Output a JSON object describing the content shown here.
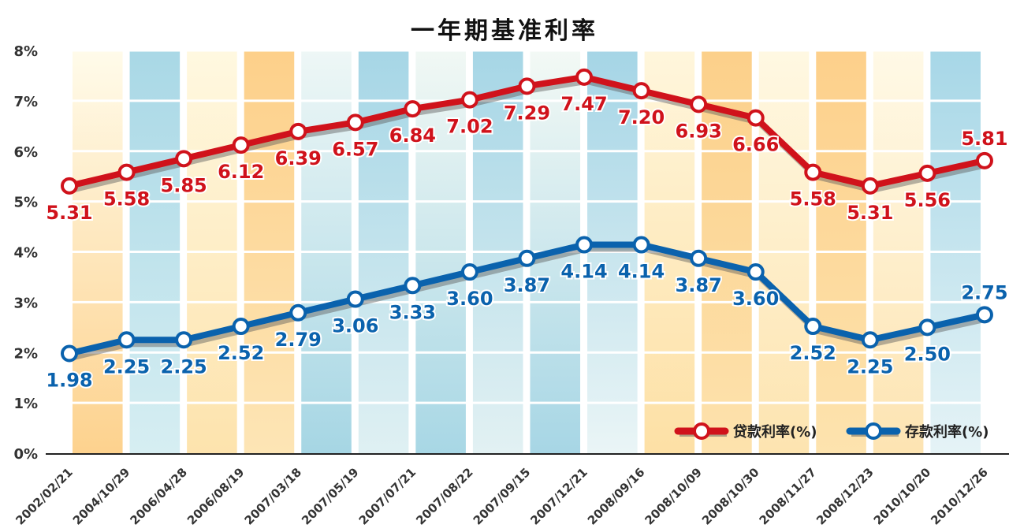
{
  "chart_data": {
    "type": "line",
    "title": "一年期基准利率",
    "categories": [
      "2002/02/21",
      "2004/10/29",
      "2006/04/28",
      "2006/08/19",
      "2007/03/18",
      "2007/05/19",
      "2007/07/21",
      "2007/08/22",
      "2007/09/15",
      "2007/12/21",
      "2008/09/16",
      "2008/10/09",
      "2008/10/30",
      "2008/11/27",
      "2008/12/23",
      "2010/10/20",
      "2010/12/26"
    ],
    "series": [
      {
        "name": "贷款利率(%)",
        "color": "#d0121b",
        "values": [
          5.31,
          5.58,
          5.85,
          6.12,
          6.39,
          6.57,
          6.84,
          7.02,
          7.29,
          7.47,
          7.2,
          6.93,
          6.66,
          5.58,
          5.31,
          5.56,
          5.81
        ],
        "labels": [
          "5.31",
          "5.58",
          "5.85",
          "6.12",
          "6.39",
          "6.57",
          "6.84",
          "7.02",
          "7.29",
          "7.47",
          "7.20",
          "6.93",
          "6.66",
          "5.58",
          "5.31",
          "5.56",
          "5.81"
        ]
      },
      {
        "name": "存款利率(%)",
        "color": "#0a62ad",
        "values": [
          1.98,
          2.25,
          2.25,
          2.52,
          2.79,
          3.06,
          3.33,
          3.6,
          3.87,
          4.14,
          4.14,
          3.87,
          3.6,
          2.52,
          2.25,
          2.5,
          2.75
        ],
        "labels": [
          "1.98",
          "2.25",
          "2.25",
          "2.52",
          "2.79",
          "3.06",
          "3.33",
          "3.60",
          "3.87",
          "4.14",
          "4.14",
          "3.87",
          "3.60",
          "2.52",
          "2.25",
          "2.50",
          "2.75"
        ]
      }
    ],
    "ylim": [
      0,
      8
    ],
    "yticks": [
      "0%",
      "1%",
      "2%",
      "3%",
      "4%",
      "5%",
      "6%",
      "7%",
      "8%"
    ],
    "grid": true,
    "legend": "bottom-right",
    "stripe_colors": [
      [
        "#fffbea",
        "#fdd28e"
      ],
      [
        "#a9d8e6",
        "#d6eef2"
      ],
      [
        "#fff8e0",
        "#fde3ad"
      ],
      [
        "#fdd08a",
        "#fde5b5"
      ],
      [
        "#eef7f6",
        "#a6d6e4"
      ],
      [
        "#a6d6e6",
        "#dff0f3"
      ],
      [
        "#f1f8f4",
        "#a8d7e5"
      ],
      [
        "#a6d6e6",
        "#e2f1f3"
      ],
      [
        "#f3f9f5",
        "#a7d6e5"
      ],
      [
        "#a5d5e6",
        "#eaf5f6"
      ],
      [
        "#fff6dc",
        "#fde0a5"
      ],
      [
        "#fcd08a",
        "#fde2ad"
      ],
      [
        "#fff8e2",
        "#fde4b0"
      ],
      [
        "#fdd08b",
        "#fde3ae"
      ],
      [
        "#fff9e6",
        "#fde4b2"
      ],
      [
        "#a7d7e7",
        "#e5f3f6"
      ]
    ]
  }
}
